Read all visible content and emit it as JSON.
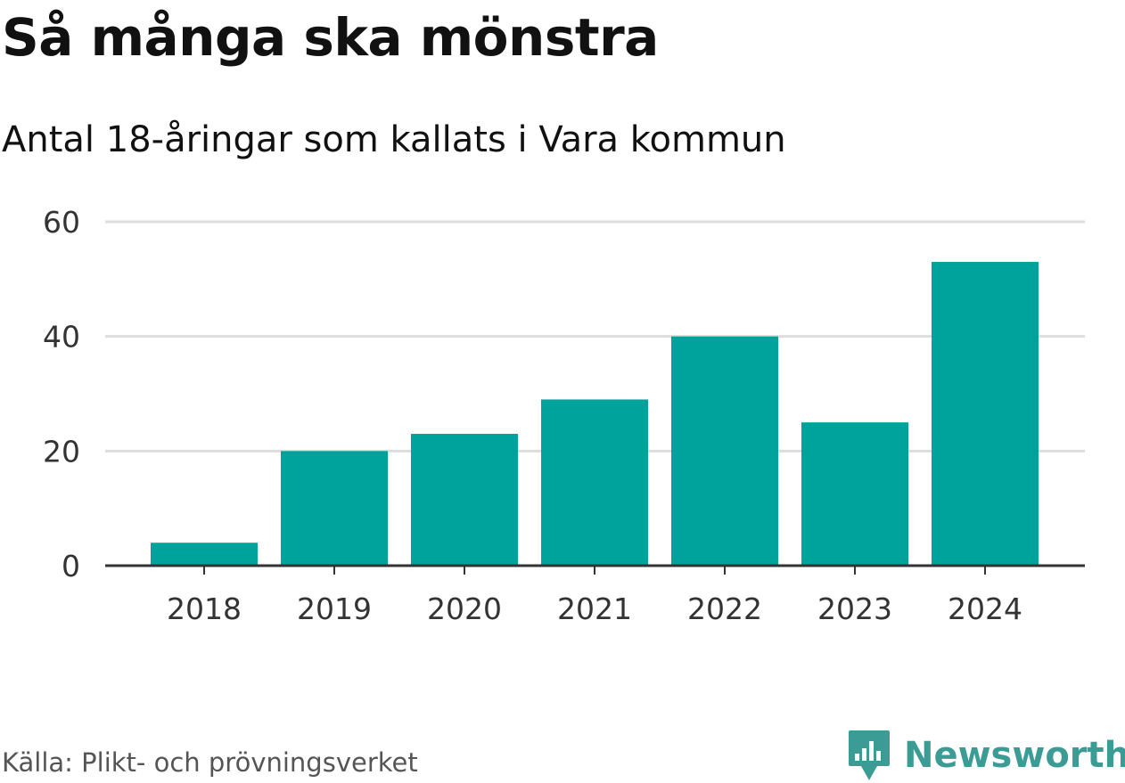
{
  "title": "Så många ska mönstra",
  "subtitle": "Antal 18-åringar som kallats i Vara kommun",
  "source": "Källa: Plikt- och prövningsverket",
  "brand": {
    "name": "Newsworthy",
    "icon": "newsworthy-logo-icon",
    "color": "#3a9c95"
  },
  "colors": {
    "bar": "#00a39b",
    "grid": "#dddddd",
    "axis": "#333333"
  },
  "chart_data": {
    "type": "bar",
    "categories": [
      "2018",
      "2019",
      "2020",
      "2021",
      "2022",
      "2023",
      "2024"
    ],
    "values": [
      4,
      20,
      23,
      29,
      40,
      25,
      53
    ],
    "title": "Så många ska mönstra",
    "subtitle": "Antal 18-åringar som kallats i Vara kommun",
    "xlabel": "",
    "ylabel": "",
    "ylim": [
      0,
      60
    ],
    "yticks": [
      0,
      20,
      40,
      60
    ],
    "grid": true,
    "legend": "none"
  }
}
